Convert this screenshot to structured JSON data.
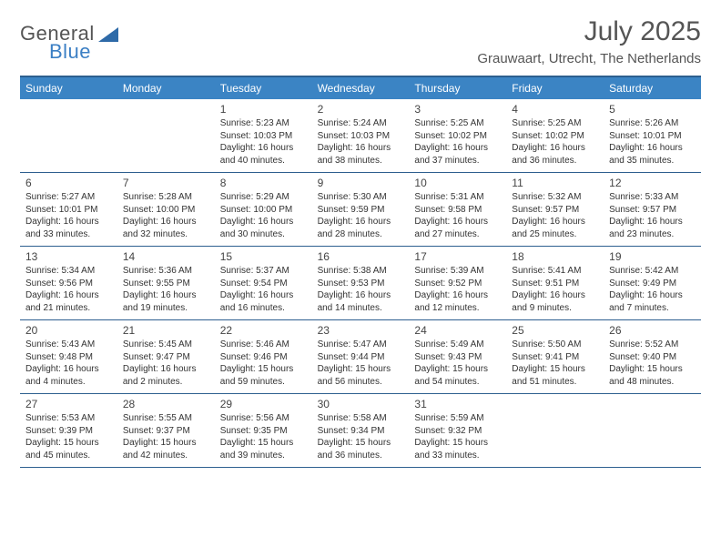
{
  "brand": {
    "word1": "General",
    "word2": "Blue",
    "word1_color": "#555555",
    "word2_color": "#3b7fc4",
    "triangle_color": "#2e6aa8"
  },
  "title": "July 2025",
  "location": "Grauwaart, Utrecht, The Netherlands",
  "colors": {
    "header_bg": "#3b84c4",
    "rule": "#2d5f8f",
    "text": "#333333"
  },
  "weekdays": [
    "Sunday",
    "Monday",
    "Tuesday",
    "Wednesday",
    "Thursday",
    "Friday",
    "Saturday"
  ],
  "weeks": [
    [
      null,
      null,
      {
        "n": "1",
        "sr": "Sunrise: 5:23 AM",
        "ss": "Sunset: 10:03 PM",
        "d1": "Daylight: 16 hours",
        "d2": "and 40 minutes."
      },
      {
        "n": "2",
        "sr": "Sunrise: 5:24 AM",
        "ss": "Sunset: 10:03 PM",
        "d1": "Daylight: 16 hours",
        "d2": "and 38 minutes."
      },
      {
        "n": "3",
        "sr": "Sunrise: 5:25 AM",
        "ss": "Sunset: 10:02 PM",
        "d1": "Daylight: 16 hours",
        "d2": "and 37 minutes."
      },
      {
        "n": "4",
        "sr": "Sunrise: 5:25 AM",
        "ss": "Sunset: 10:02 PM",
        "d1": "Daylight: 16 hours",
        "d2": "and 36 minutes."
      },
      {
        "n": "5",
        "sr": "Sunrise: 5:26 AM",
        "ss": "Sunset: 10:01 PM",
        "d1": "Daylight: 16 hours",
        "d2": "and 35 minutes."
      }
    ],
    [
      {
        "n": "6",
        "sr": "Sunrise: 5:27 AM",
        "ss": "Sunset: 10:01 PM",
        "d1": "Daylight: 16 hours",
        "d2": "and 33 minutes."
      },
      {
        "n": "7",
        "sr": "Sunrise: 5:28 AM",
        "ss": "Sunset: 10:00 PM",
        "d1": "Daylight: 16 hours",
        "d2": "and 32 minutes."
      },
      {
        "n": "8",
        "sr": "Sunrise: 5:29 AM",
        "ss": "Sunset: 10:00 PM",
        "d1": "Daylight: 16 hours",
        "d2": "and 30 minutes."
      },
      {
        "n": "9",
        "sr": "Sunrise: 5:30 AM",
        "ss": "Sunset: 9:59 PM",
        "d1": "Daylight: 16 hours",
        "d2": "and 28 minutes."
      },
      {
        "n": "10",
        "sr": "Sunrise: 5:31 AM",
        "ss": "Sunset: 9:58 PM",
        "d1": "Daylight: 16 hours",
        "d2": "and 27 minutes."
      },
      {
        "n": "11",
        "sr": "Sunrise: 5:32 AM",
        "ss": "Sunset: 9:57 PM",
        "d1": "Daylight: 16 hours",
        "d2": "and 25 minutes."
      },
      {
        "n": "12",
        "sr": "Sunrise: 5:33 AM",
        "ss": "Sunset: 9:57 PM",
        "d1": "Daylight: 16 hours",
        "d2": "and 23 minutes."
      }
    ],
    [
      {
        "n": "13",
        "sr": "Sunrise: 5:34 AM",
        "ss": "Sunset: 9:56 PM",
        "d1": "Daylight: 16 hours",
        "d2": "and 21 minutes."
      },
      {
        "n": "14",
        "sr": "Sunrise: 5:36 AM",
        "ss": "Sunset: 9:55 PM",
        "d1": "Daylight: 16 hours",
        "d2": "and 19 minutes."
      },
      {
        "n": "15",
        "sr": "Sunrise: 5:37 AM",
        "ss": "Sunset: 9:54 PM",
        "d1": "Daylight: 16 hours",
        "d2": "and 16 minutes."
      },
      {
        "n": "16",
        "sr": "Sunrise: 5:38 AM",
        "ss": "Sunset: 9:53 PM",
        "d1": "Daylight: 16 hours",
        "d2": "and 14 minutes."
      },
      {
        "n": "17",
        "sr": "Sunrise: 5:39 AM",
        "ss": "Sunset: 9:52 PM",
        "d1": "Daylight: 16 hours",
        "d2": "and 12 minutes."
      },
      {
        "n": "18",
        "sr": "Sunrise: 5:41 AM",
        "ss": "Sunset: 9:51 PM",
        "d1": "Daylight: 16 hours",
        "d2": "and 9 minutes."
      },
      {
        "n": "19",
        "sr": "Sunrise: 5:42 AM",
        "ss": "Sunset: 9:49 PM",
        "d1": "Daylight: 16 hours",
        "d2": "and 7 minutes."
      }
    ],
    [
      {
        "n": "20",
        "sr": "Sunrise: 5:43 AM",
        "ss": "Sunset: 9:48 PM",
        "d1": "Daylight: 16 hours",
        "d2": "and 4 minutes."
      },
      {
        "n": "21",
        "sr": "Sunrise: 5:45 AM",
        "ss": "Sunset: 9:47 PM",
        "d1": "Daylight: 16 hours",
        "d2": "and 2 minutes."
      },
      {
        "n": "22",
        "sr": "Sunrise: 5:46 AM",
        "ss": "Sunset: 9:46 PM",
        "d1": "Daylight: 15 hours",
        "d2": "and 59 minutes."
      },
      {
        "n": "23",
        "sr": "Sunrise: 5:47 AM",
        "ss": "Sunset: 9:44 PM",
        "d1": "Daylight: 15 hours",
        "d2": "and 56 minutes."
      },
      {
        "n": "24",
        "sr": "Sunrise: 5:49 AM",
        "ss": "Sunset: 9:43 PM",
        "d1": "Daylight: 15 hours",
        "d2": "and 54 minutes."
      },
      {
        "n": "25",
        "sr": "Sunrise: 5:50 AM",
        "ss": "Sunset: 9:41 PM",
        "d1": "Daylight: 15 hours",
        "d2": "and 51 minutes."
      },
      {
        "n": "26",
        "sr": "Sunrise: 5:52 AM",
        "ss": "Sunset: 9:40 PM",
        "d1": "Daylight: 15 hours",
        "d2": "and 48 minutes."
      }
    ],
    [
      {
        "n": "27",
        "sr": "Sunrise: 5:53 AM",
        "ss": "Sunset: 9:39 PM",
        "d1": "Daylight: 15 hours",
        "d2": "and 45 minutes."
      },
      {
        "n": "28",
        "sr": "Sunrise: 5:55 AM",
        "ss": "Sunset: 9:37 PM",
        "d1": "Daylight: 15 hours",
        "d2": "and 42 minutes."
      },
      {
        "n": "29",
        "sr": "Sunrise: 5:56 AM",
        "ss": "Sunset: 9:35 PM",
        "d1": "Daylight: 15 hours",
        "d2": "and 39 minutes."
      },
      {
        "n": "30",
        "sr": "Sunrise: 5:58 AM",
        "ss": "Sunset: 9:34 PM",
        "d1": "Daylight: 15 hours",
        "d2": "and 36 minutes."
      },
      {
        "n": "31",
        "sr": "Sunrise: 5:59 AM",
        "ss": "Sunset: 9:32 PM",
        "d1": "Daylight: 15 hours",
        "d2": "and 33 minutes."
      },
      null,
      null
    ]
  ]
}
